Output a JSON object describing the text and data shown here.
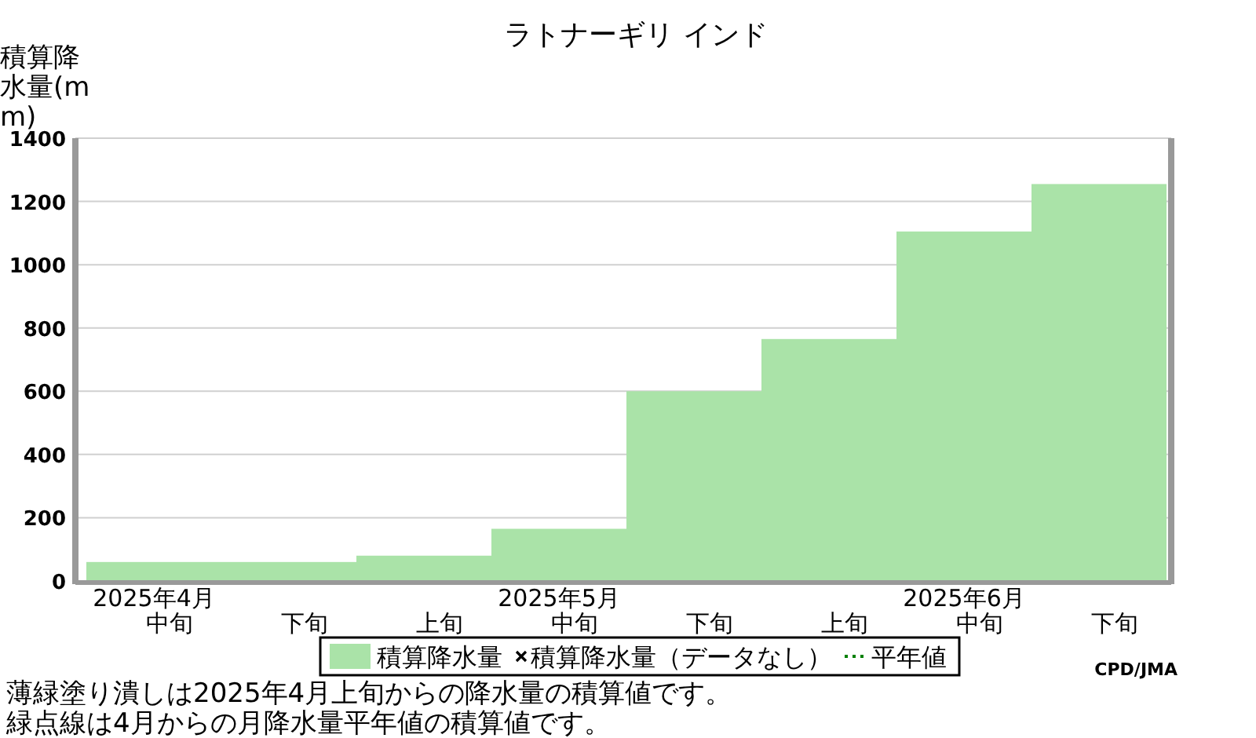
{
  "chart_data": {
    "type": "bar",
    "title": "ラトナーギリ インド",
    "ylabel": "積算降水量(mm)",
    "categories": [
      "中旬",
      "下旬",
      "上旬",
      "中旬",
      "下旬",
      "上旬",
      "中旬",
      "下旬"
    ],
    "series": [
      {
        "name": "積算降水量",
        "color": "#aae3a8",
        "values": [
          60,
          60,
          80,
          165,
          600,
          765,
          1105,
          1255
        ]
      },
      {
        "name": "積算降水量（データなし）",
        "type": "scatter",
        "marker": "cross",
        "color": "#000000",
        "values": [
          null,
          null,
          null,
          null,
          null,
          null,
          null,
          null
        ]
      },
      {
        "name": "平年値",
        "type": "line",
        "line_style": "dotted",
        "color": "#008000",
        "values": [
          null,
          null,
          null,
          null,
          null,
          null,
          null,
          null
        ]
      }
    ],
    "ylim": [
      0,
      1400
    ],
    "yticks": [
      0,
      200,
      400,
      600,
      800,
      1000,
      1200,
      1400
    ],
    "grid": "y",
    "legend": "bottom",
    "annotations": [
      "2025年4月",
      "2025年5月",
      "2025年6月",
      "CPD/JMA",
      "薄緑塗り潰しは2025年4月上旬からの降水量の積算値です。",
      "緑点線は4月からの月降水量平年値の積算値です。"
    ]
  }
}
